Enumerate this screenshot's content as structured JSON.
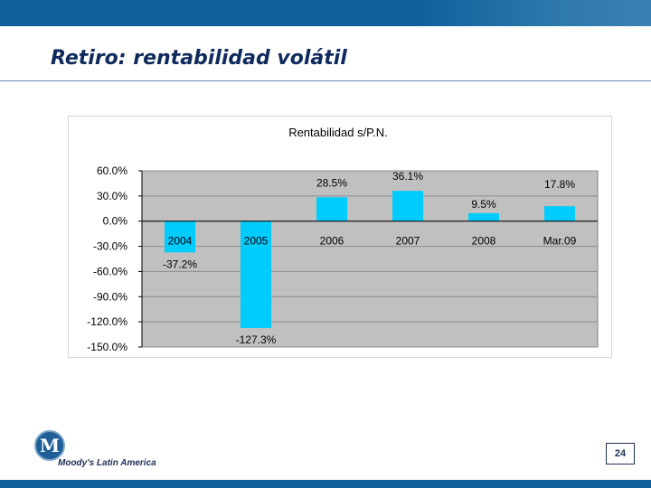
{
  "slide": {
    "title": "Retiro: rentabilidad volátil",
    "brand": "Moody's Latin America",
    "logo_letter": "M",
    "page_number": "24"
  },
  "colors": {
    "bar": "#00ccff",
    "plot_bg": "#c0c0c0",
    "band": "#10609a"
  },
  "chart_data": {
    "type": "bar",
    "title": "Rentabilidad s/P.N.",
    "categories": [
      "2004",
      "2005",
      "2006",
      "2007",
      "2008",
      "Mar.09"
    ],
    "values": [
      -37.2,
      -127.3,
      28.5,
      36.1,
      9.5,
      17.8
    ],
    "value_labels": [
      "-37.2%",
      "-127.3%",
      "28.5%",
      "36.1%",
      "9.5%",
      "17.8%"
    ],
    "ylim": [
      -150,
      60
    ],
    "yticks": [
      60,
      30,
      0,
      -30,
      -60,
      -90,
      -120,
      -150
    ],
    "ytick_labels": [
      "60.0%",
      "30.0%",
      "0.0%",
      "-30.0%",
      "-60.0%",
      "-90.0%",
      "-120.0%",
      "-150.0%"
    ],
    "xlabel": "",
    "ylabel": "",
    "grid": true,
    "legend": "none"
  }
}
